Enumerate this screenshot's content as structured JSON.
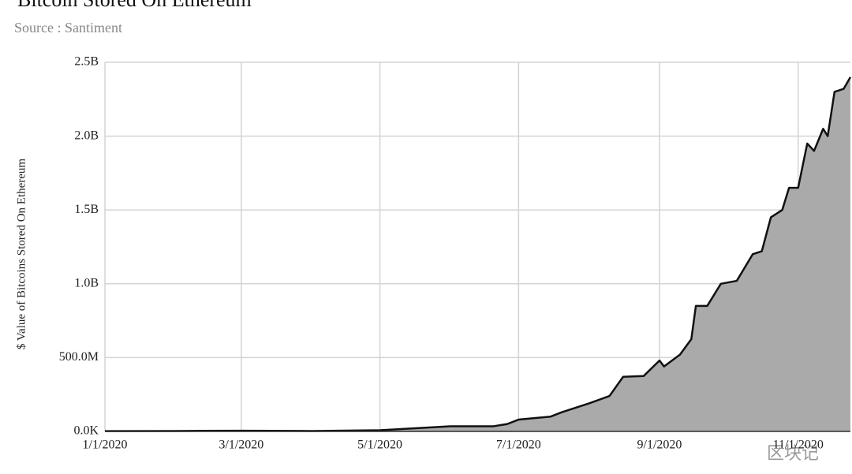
{
  "chart_data": {
    "type": "area",
    "title": "Bitcoin Stored On Ethereum",
    "subtitle": "Source : Santiment",
    "y_label": "$ Value of Bitcoins Stored On Ethereum",
    "watermark": "区块记",
    "x": [
      "1/1/2020",
      "2/1/2020",
      "3/1/2020",
      "4/1/2020",
      "5/1/2020",
      "5/15/2020",
      "6/1/2020",
      "6/20/2020",
      "6/26/2020",
      "7/1/2020",
      "7/15/2020",
      "7/20/2020",
      "8/1/2020",
      "8/10/2020",
      "8/16/2020",
      "8/25/2020",
      "9/1/2020",
      "9/3/2020",
      "9/10/2020",
      "9/15/2020",
      "9/17/2020",
      "9/22/2020",
      "9/28/2020",
      "10/5/2020",
      "10/12/2020",
      "10/16/2020",
      "10/20/2020",
      "10/25/2020",
      "10/28/2020",
      "11/1/2020",
      "11/5/2020",
      "11/8/2020",
      "11/12/2020",
      "11/14/2020",
      "11/17/2020",
      "11/21/2020",
      "11/24/2020"
    ],
    "series": [
      {
        "name": "$ Value of Bitcoins Stored On Ethereum",
        "color": "#aaaaaa",
        "values": [
          2000000,
          3000000,
          5000000,
          3000000,
          8000000,
          20000000,
          35000000,
          35000000,
          50000000,
          80000000,
          100000000,
          130000000,
          190000000,
          240000000,
          370000000,
          375000000,
          480000000,
          440000000,
          520000000,
          625000000,
          850000000,
          850000000,
          1000000000,
          1020000000,
          1200000000,
          1220000000,
          1450000000,
          1500000000,
          1650000000,
          1650000000,
          1950000000,
          1900000000,
          2050000000,
          2000000000,
          2300000000,
          2320000000,
          2400000000
        ]
      }
    ],
    "xlim": [
      "1/1/2020",
      "11/24/2020"
    ],
    "xticks": [
      "1/1/2020",
      "3/1/2020",
      "5/1/2020",
      "7/1/2020",
      "9/1/2020",
      "11/1/2020"
    ],
    "ylim": [
      0,
      2500000000
    ],
    "yticks": [
      {
        "value": 0,
        "label": "0.0K"
      },
      {
        "value": 500000000,
        "label": "500.0M"
      },
      {
        "value": 1000000000,
        "label": "1.0B"
      },
      {
        "value": 1500000000,
        "label": "1.5B"
      },
      {
        "value": 2000000000,
        "label": "2.0B"
      },
      {
        "value": 2500000000,
        "label": "2.5B"
      }
    ],
    "grid": true,
    "line_color": "#111111"
  }
}
